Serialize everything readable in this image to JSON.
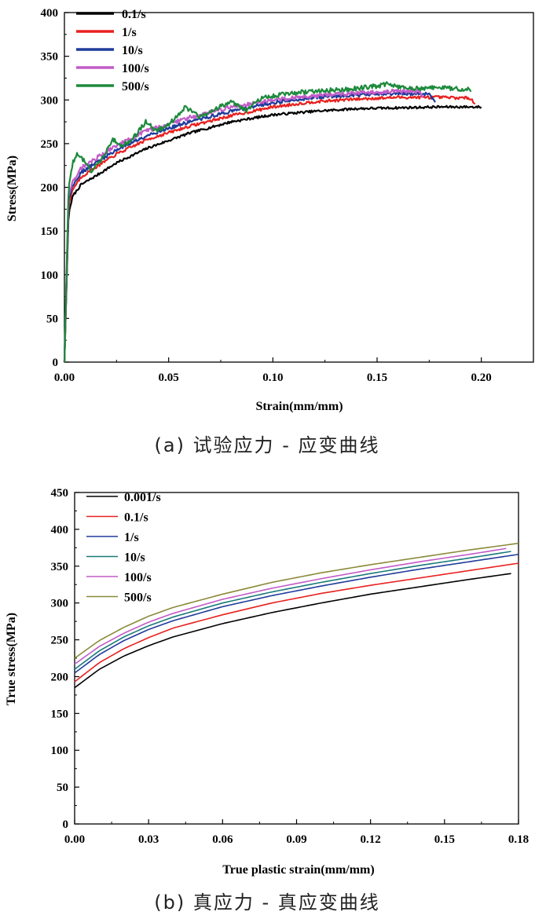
{
  "chart_data": [
    {
      "type": "line",
      "title": "",
      "xlabel": "Strain(mm/mm)",
      "ylabel": "Stress(MPa)",
      "xlim": [
        0,
        0.225
      ],
      "ylim": [
        0,
        400
      ],
      "xticks": [
        0,
        0.05,
        0.1,
        0.15,
        0.2
      ],
      "xtick_labels": [
        "0.00",
        "0.05",
        "0.10",
        "0.15",
        "0.20"
      ],
      "yticks": [
        0,
        50,
        100,
        150,
        200,
        250,
        300,
        350,
        400
      ],
      "ytick_labels": [
        "0",
        "50",
        "100",
        "150",
        "200",
        "250",
        "300",
        "350",
        "400"
      ],
      "grid": false,
      "legend_position": "top-left",
      "caption": "(a) 试验应力 - 应变曲线",
      "series": [
        {
          "name": "0.1/s",
          "color": "#000000",
          "x": [
            0,
            0.002,
            0.004,
            0.008,
            0.015,
            0.025,
            0.04,
            0.06,
            0.08,
            0.1,
            0.12,
            0.14,
            0.16,
            0.18,
            0.2
          ],
          "y": [
            0,
            170,
            190,
            203,
            213,
            228,
            245,
            262,
            275,
            283,
            287,
            290,
            291,
            292,
            292
          ]
        },
        {
          "name": "1/s",
          "color": "#e8211f",
          "x": [
            0,
            0.002,
            0.004,
            0.008,
            0.015,
            0.025,
            0.04,
            0.06,
            0.08,
            0.1,
            0.12,
            0.14,
            0.16,
            0.18,
            0.195,
            0.197
          ],
          "y": [
            0,
            180,
            198,
            212,
            223,
            238,
            255,
            270,
            282,
            292,
            298,
            301,
            303,
            303,
            302,
            296
          ]
        },
        {
          "name": "10/s",
          "color": "#1f3b9b",
          "x": [
            0,
            0.002,
            0.004,
            0.008,
            0.015,
            0.025,
            0.04,
            0.06,
            0.08,
            0.1,
            0.12,
            0.14,
            0.16,
            0.175,
            0.178
          ],
          "y": [
            0,
            185,
            202,
            217,
            228,
            243,
            260,
            275,
            287,
            297,
            303,
            306,
            307,
            307,
            298
          ]
        },
        {
          "name": "100/s",
          "color": "#c25bc7",
          "x": [
            0,
            0.002,
            0.004,
            0.008,
            0.015,
            0.025,
            0.04,
            0.06,
            0.08,
            0.1,
            0.12,
            0.14,
            0.16,
            0.17,
            0.172
          ],
          "y": [
            0,
            190,
            207,
            222,
            233,
            248,
            265,
            280,
            292,
            300,
            305,
            308,
            310,
            310,
            303
          ]
        },
        {
          "name": "500/s",
          "color": "#1d8a3c",
          "x": [
            0,
            0.002,
            0.004,
            0.006,
            0.009,
            0.013,
            0.018,
            0.023,
            0.028,
            0.033,
            0.039,
            0.044,
            0.05,
            0.058,
            0.065,
            0.072,
            0.08,
            0.087,
            0.095,
            0.105,
            0.12,
            0.135,
            0.15,
            0.155,
            0.165,
            0.18,
            0.195
          ],
          "y": [
            0,
            200,
            228,
            238,
            232,
            218,
            232,
            255,
            248,
            256,
            275,
            265,
            272,
            292,
            280,
            290,
            298,
            288,
            302,
            307,
            310,
            312,
            316,
            318,
            313,
            314,
            312
          ]
        }
      ]
    },
    {
      "type": "line",
      "title": "",
      "xlabel": "True plastic strain(mm/mm)",
      "ylabel": "True stress(MPa)",
      "xlim": [
        0,
        0.18
      ],
      "ylim": [
        0,
        450
      ],
      "xticks": [
        0,
        0.03,
        0.06,
        0.09,
        0.12,
        0.15,
        0.18
      ],
      "xtick_labels": [
        "0.00",
        "0.03",
        "0.06",
        "0.09",
        "0.12",
        "0.15",
        "0.18"
      ],
      "yticks": [
        0,
        50,
        100,
        150,
        200,
        250,
        300,
        350,
        400,
        450
      ],
      "ytick_labels": [
        "0",
        "50",
        "100",
        "150",
        "200",
        "250",
        "300",
        "350",
        "400",
        "450"
      ],
      "grid": false,
      "legend_position": "top-left",
      "caption": "(b) 真应力 - 真应变曲线",
      "series": [
        {
          "name": "0.001/s",
          "color": "#000000",
          "x": [
            0,
            0.01,
            0.02,
            0.03,
            0.04,
            0.06,
            0.08,
            0.1,
            0.12,
            0.14,
            0.16,
            0.177
          ],
          "y": [
            185,
            210,
            228,
            242,
            254,
            272,
            287,
            300,
            312,
            322,
            332,
            340
          ]
        },
        {
          "name": "0.1/s",
          "color": "#e8211f",
          "x": [
            0,
            0.01,
            0.02,
            0.03,
            0.04,
            0.06,
            0.08,
            0.1,
            0.12,
            0.14,
            0.16,
            0.18
          ],
          "y": [
            193,
            219,
            238,
            253,
            266,
            284,
            300,
            313,
            324,
            334,
            344,
            354
          ]
        },
        {
          "name": "1/s",
          "color": "#1f3b9b",
          "x": [
            0,
            0.01,
            0.02,
            0.03,
            0.04,
            0.06,
            0.08,
            0.1,
            0.12,
            0.14,
            0.16,
            0.18
          ],
          "y": [
            205,
            230,
            249,
            264,
            276,
            295,
            310,
            323,
            335,
            346,
            356,
            366
          ]
        },
        {
          "name": "10/s",
          "color": "#1a7a78",
          "x": [
            0,
            0.01,
            0.02,
            0.03,
            0.04,
            0.06,
            0.08,
            0.1,
            0.12,
            0.14,
            0.16,
            0.177
          ],
          "y": [
            210,
            235,
            254,
            269,
            281,
            300,
            315,
            328,
            340,
            351,
            361,
            370
          ]
        },
        {
          "name": "100/s",
          "color": "#c25bc7",
          "x": [
            0,
            0.01,
            0.02,
            0.03,
            0.04,
            0.06,
            0.08,
            0.1,
            0.12,
            0.14,
            0.16,
            0.175
          ],
          "y": [
            217,
            241,
            259,
            274,
            286,
            305,
            320,
            333,
            345,
            356,
            366,
            374
          ]
        },
        {
          "name": "500/s",
          "color": "#8a8a3a",
          "x": [
            0,
            0.01,
            0.02,
            0.03,
            0.04,
            0.06,
            0.08,
            0.1,
            0.12,
            0.14,
            0.16,
            0.18
          ],
          "y": [
            225,
            249,
            267,
            282,
            294,
            312,
            328,
            341,
            352,
            362,
            372,
            381
          ]
        }
      ]
    }
  ]
}
